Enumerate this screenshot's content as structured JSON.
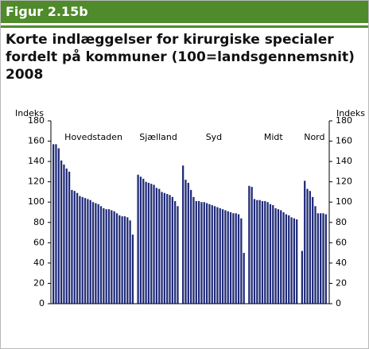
{
  "header": "Figur 2.15b",
  "chart_data": {
    "type": "bar",
    "title": "Korte indlæggelser for kirurgiske specialer fordelt på kommuner (100=landsgennemsnit) 2008",
    "ylabel": "Indeks",
    "y2label": "Indeks",
    "ylim": [
      0,
      180
    ],
    "yticks": [
      0,
      20,
      40,
      60,
      80,
      100,
      120,
      140,
      160,
      180
    ],
    "y2lim": [
      0,
      180
    ],
    "y2ticks": [
      0,
      20,
      40,
      60,
      80,
      100,
      120,
      140,
      160,
      180
    ],
    "series": [
      {
        "name": "Hovedstaden",
        "color": "#1f2a78",
        "values": [
          157,
          157,
          153,
          141,
          137,
          133,
          130,
          112,
          111,
          109,
          106,
          105,
          104,
          103,
          102,
          100,
          99,
          98,
          96,
          94,
          93,
          93,
          92,
          91,
          89,
          87,
          86,
          86,
          85,
          82,
          68
        ]
      },
      {
        "name": "Sjælland",
        "color": "#1f2a78",
        "values": [
          127,
          125,
          123,
          120,
          119,
          118,
          117,
          114,
          113,
          110,
          109,
          108,
          107,
          105,
          101,
          96
        ]
      },
      {
        "name": "Syd",
        "color": "#1f2a78",
        "values": [
          136,
          122,
          119,
          112,
          105,
          101,
          101,
          100,
          100,
          99,
          98,
          97,
          96,
          95,
          94,
          93,
          92,
          91,
          90,
          89,
          89,
          88,
          84,
          50
        ]
      },
      {
        "name": "Midt",
        "color": "#1f2a78",
        "values": [
          116,
          115,
          103,
          102,
          102,
          101,
          101,
          100,
          98,
          97,
          94,
          93,
          92,
          90,
          88,
          87,
          85,
          84,
          83
        ]
      },
      {
        "name": "Nord",
        "color": "#1f2a78",
        "values": [
          52,
          121,
          113,
          111,
          105,
          96,
          89,
          89,
          89,
          88
        ]
      }
    ]
  }
}
